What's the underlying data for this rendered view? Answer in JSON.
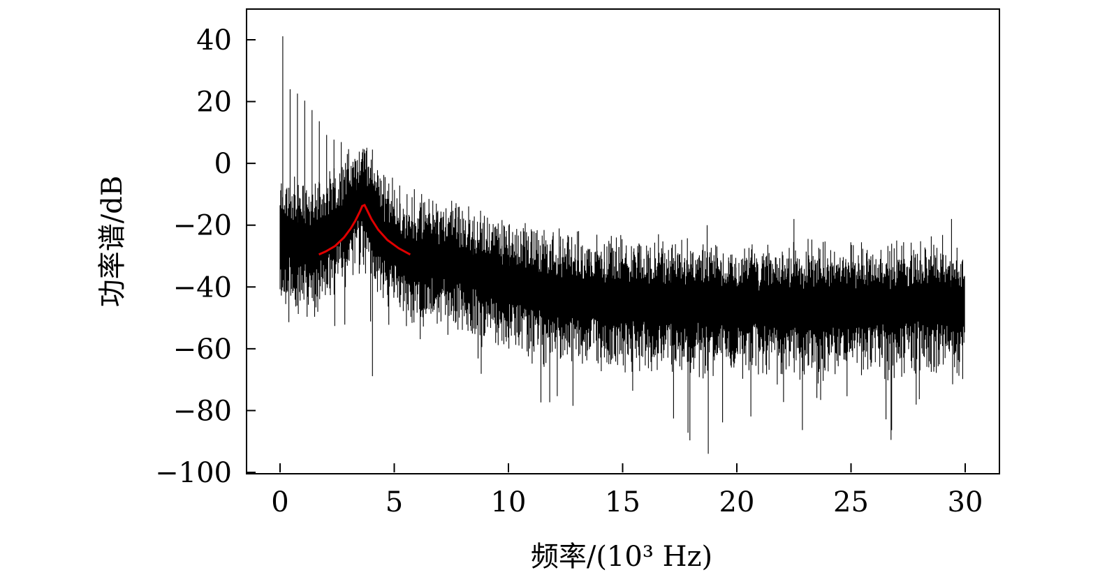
{
  "chart_data": {
    "type": "line",
    "xlabel": "频率/(10³ Hz)",
    "ylabel": "功率谱/dB",
    "xlim": [
      -1.5,
      31.5
    ],
    "ylim": [
      -100,
      50
    ],
    "xticks": [
      0,
      5,
      10,
      15,
      20,
      25,
      30
    ],
    "xtick_labels": [
      "0",
      "5",
      "10",
      "15",
      "20",
      "25",
      "30"
    ],
    "yticks": [
      40,
      20,
      0,
      -20,
      -40,
      -60,
      -80,
      -100
    ],
    "ytick_labels": [
      "40",
      "20",
      "0",
      "−20",
      "−40",
      "−60",
      "−80",
      "−100"
    ],
    "grid": false,
    "series": [
      {
        "kind": "noise-spectrum",
        "color": "#000000",
        "x_range": [
          0,
          30
        ],
        "baseline": [
          {
            "x": 0.0,
            "y": -24
          },
          {
            "x": 1.5,
            "y": -26
          },
          {
            "x": 3.0,
            "y": -17
          },
          {
            "x": 3.6,
            "y": -11
          },
          {
            "x": 4.5,
            "y": -24
          },
          {
            "x": 6.0,
            "y": -32
          },
          {
            "x": 7.5,
            "y": -31
          },
          {
            "x": 9.0,
            "y": -37
          },
          {
            "x": 12.0,
            "y": -42
          },
          {
            "x": 15.0,
            "y": -44
          },
          {
            "x": 20.0,
            "y": -46
          },
          {
            "x": 25.0,
            "y": -46
          },
          {
            "x": 29.3,
            "y": -45
          },
          {
            "x": 30.0,
            "y": -47
          }
        ],
        "harmonic_spacing": 0.32,
        "harmonic_peaks": [
          {
            "x": 0.12,
            "y": 43
          },
          {
            "x": 0.45,
            "y": 27
          },
          {
            "x": 1.0,
            "y": 22
          },
          {
            "x": 2.0,
            "y": 12
          },
          {
            "x": 3.0,
            "y": 5
          },
          {
            "x": 5.0,
            "y": -4
          },
          {
            "x": 7.0,
            "y": -12
          },
          {
            "x": 9.0,
            "y": -17
          },
          {
            "x": 12.0,
            "y": -22
          },
          {
            "x": 15.0,
            "y": -26
          },
          {
            "x": 20.0,
            "y": -30
          },
          {
            "x": 25.0,
            "y": -31
          },
          {
            "x": 30.0,
            "y": -33
          }
        ],
        "notable_spikes": [
          {
            "x": 18.7,
            "y": -20
          },
          {
            "x": 18.75,
            "y": -94
          },
          {
            "x": 22.5,
            "y": -18
          },
          {
            "x": 29.4,
            "y": -18
          }
        ]
      },
      {
        "kind": "lorentzian-fit",
        "color": "#e00000",
        "points": [
          {
            "x": 1.7,
            "y": -29.5
          },
          {
            "x": 2.0,
            "y": -28.5
          },
          {
            "x": 2.4,
            "y": -26.8
          },
          {
            "x": 2.8,
            "y": -24.0
          },
          {
            "x": 3.1,
            "y": -21.0
          },
          {
            "x": 3.3,
            "y": -18.5
          },
          {
            "x": 3.5,
            "y": -15.5
          },
          {
            "x": 3.6,
            "y": -13.8
          },
          {
            "x": 3.7,
            "y": -13.5
          },
          {
            "x": 3.8,
            "y": -15.0
          },
          {
            "x": 4.0,
            "y": -18.0
          },
          {
            "x": 4.3,
            "y": -21.5
          },
          {
            "x": 4.7,
            "y": -24.8
          },
          {
            "x": 5.2,
            "y": -27.5
          },
          {
            "x": 5.7,
            "y": -29.5
          }
        ]
      }
    ]
  }
}
